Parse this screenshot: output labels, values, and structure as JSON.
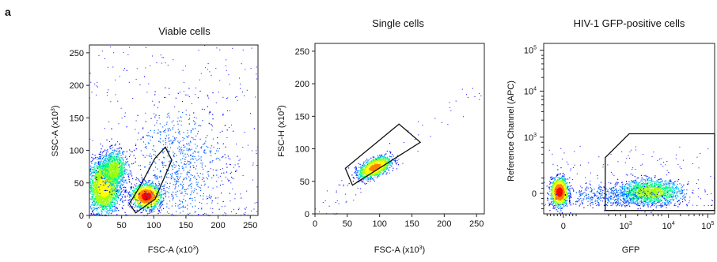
{
  "figure_label": "a",
  "chart_data": [
    {
      "type": "scatter",
      "title": "Viable cells",
      "xlabel": "FSC-A  (x10",
      "xlabel_sup": "3",
      "xlabel_close": ")",
      "ylabel": "SSC-A  (x10",
      "ylabel_sup": "3",
      "ylabel_close": ")",
      "xlim": [
        0,
        262
      ],
      "ylim": [
        0,
        262
      ],
      "xticks": [
        0,
        50,
        100,
        150,
        200,
        250
      ],
      "yticks": [
        0,
        50,
        100,
        150,
        200,
        250
      ],
      "colormap": [
        "#0000ff",
        "#00a0ff",
        "#00ff80",
        "#ffff00",
        "#ff8000",
        "#ff0000"
      ],
      "clusters": [
        {
          "cx": 22,
          "cy": 45,
          "sx": 12,
          "sy": 20,
          "n": 2600,
          "peak": "#ffff00"
        },
        {
          "cx": 38,
          "cy": 72,
          "sx": 10,
          "sy": 14,
          "n": 900,
          "peak": "#00ff80"
        },
        {
          "cx": 88,
          "cy": 30,
          "sx": 11,
          "sy": 9,
          "n": 1500,
          "peak": "#ff0000"
        },
        {
          "cx": 140,
          "cy": 80,
          "sx": 35,
          "sy": 45,
          "n": 700,
          "peak": "#0000ff"
        }
      ],
      "gate": [
        [
          62,
          18
        ],
        [
          72,
          4
        ],
        [
          102,
          25
        ],
        [
          128,
          85
        ],
        [
          118,
          105
        ],
        [
          102,
          88
        ],
        [
          77,
          42
        ]
      ]
    },
    {
      "type": "scatter",
      "title": "Single cells",
      "xlabel": "FSC-A  (x10",
      "xlabel_sup": "3",
      "xlabel_close": ")",
      "ylabel": "FSC-H  (x10",
      "ylabel_sup": "3",
      "ylabel_close": ")",
      "xlim": [
        0,
        262
      ],
      "ylim": [
        0,
        262
      ],
      "xticks": [
        0,
        50,
        100,
        150,
        200,
        250
      ],
      "yticks": [
        0,
        50,
        100,
        150,
        200,
        250
      ],
      "clusters": [
        {
          "cx": 92,
          "cy": 72,
          "sx": 12,
          "sy": 8,
          "n": 1400,
          "peak": "#ff8000",
          "corr": 0.55
        }
      ],
      "gate": [
        [
          47,
          70
        ],
        [
          130,
          138
        ],
        [
          163,
          110
        ],
        [
          58,
          44
        ]
      ]
    },
    {
      "type": "scatter",
      "title": "HIV-1 GFP-positive cells",
      "xlabel": "GFP",
      "ylabel": "Reference Channel (APC)",
      "scale": "biexponential",
      "xticks": [
        "0",
        "10",
        "10",
        "10"
      ],
      "xtick_exp": [
        "",
        "3",
        "4",
        "5"
      ],
      "yticks": [
        "0",
        "10",
        "10",
        "10"
      ],
      "ytick_exp": [
        "",
        "3",
        "4",
        "5"
      ],
      "clusters": [
        {
          "cx": 0.09,
          "cy": 0.13,
          "sx": 0.025,
          "sy": 0.04,
          "n": 1300,
          "peak": "#ff0000"
        },
        {
          "cx": 0.62,
          "cy": 0.13,
          "sx": 0.09,
          "sy": 0.035,
          "n": 1500,
          "peak": "#00ff80"
        },
        {
          "cx": 0.4,
          "cy": 0.11,
          "sx": 0.14,
          "sy": 0.03,
          "n": 400,
          "peak": "#0000ff"
        }
      ],
      "gate": [
        [
          0.36,
          0.02
        ],
        [
          1.0,
          0.02
        ],
        [
          1.0,
          0.47
        ],
        [
          0.5,
          0.47
        ],
        [
          0.36,
          0.33
        ]
      ]
    }
  ]
}
